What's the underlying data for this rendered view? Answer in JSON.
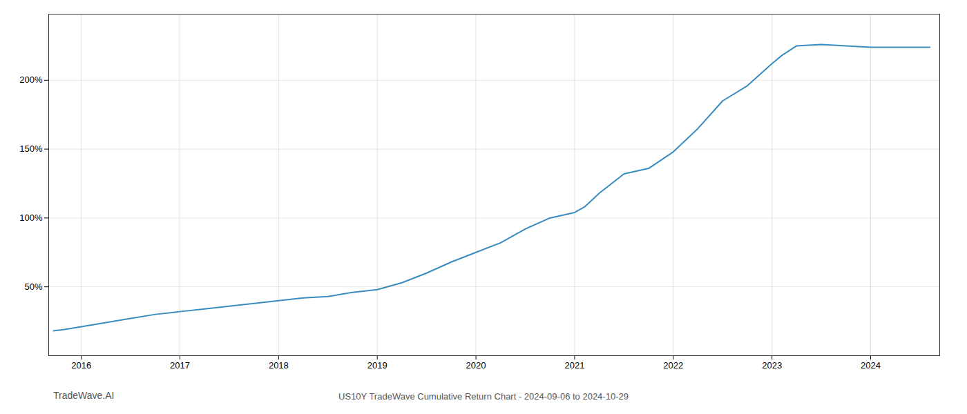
{
  "chart_data": {
    "type": "line",
    "title": "US10Y TradeWave Cumulative Return Chart - 2024-09-06 to 2024-10-29",
    "annotations": [
      "TradeWave.AI"
    ],
    "x": [
      2015.72,
      2015.83,
      2016.0,
      2016.25,
      2016.5,
      2016.75,
      2017.0,
      2017.25,
      2017.5,
      2017.75,
      2018.0,
      2018.25,
      2018.5,
      2018.75,
      2019.0,
      2019.25,
      2019.5,
      2019.75,
      2020.0,
      2020.25,
      2020.5,
      2020.75,
      2021.0,
      2021.1,
      2021.25,
      2021.5,
      2021.75,
      2022.0,
      2022.25,
      2022.5,
      2022.75,
      2023.0,
      2023.1,
      2023.25,
      2023.5,
      2023.75,
      2024.0,
      2024.25,
      2024.5,
      2024.6
    ],
    "values": [
      18,
      19,
      21,
      24,
      27,
      30,
      32,
      34,
      36,
      38,
      40,
      42,
      43,
      46,
      48,
      53,
      60,
      68,
      75,
      82,
      92,
      100,
      104,
      108,
      118,
      132,
      136,
      148,
      165,
      185,
      196,
      212,
      218,
      225,
      226,
      225,
      224,
      224,
      224,
      224
    ],
    "color": "#3a8bbf",
    "xlim": [
      2015.67,
      2024.7
    ],
    "xticks": [
      2016,
      2017,
      2018,
      2019,
      2020,
      2021,
      2022,
      2023,
      2024
    ],
    "ylim": [
      0,
      248
    ],
    "yticks": [
      {
        "value": 50,
        "label": "50%"
      },
      {
        "value": 100,
        "label": "100%"
      },
      {
        "value": 150,
        "label": "150%"
      },
      {
        "value": 200,
        "label": "200%"
      }
    ],
    "grid": true
  }
}
